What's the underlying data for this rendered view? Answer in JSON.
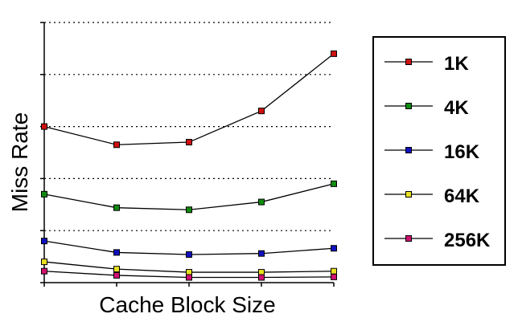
{
  "chart_data": {
    "type": "line",
    "title": "",
    "xlabel": "Cache Block Size",
    "ylabel": "Miss Rate",
    "categories": [
      "",
      "",
      "",
      "",
      ""
    ],
    "ylim": [
      0,
      5
    ],
    "grid": "horizontal dotted",
    "legend_position": "right",
    "series": [
      {
        "name": "1K",
        "color": "#d01010",
        "values": [
          3.0,
          2.65,
          2.7,
          3.3,
          4.4
        ]
      },
      {
        "name": "4K",
        "color": "#108a10",
        "values": [
          1.7,
          1.44,
          1.4,
          1.55,
          1.9
        ]
      },
      {
        "name": "16K",
        "color": "#1010c0",
        "values": [
          0.8,
          0.58,
          0.54,
          0.56,
          0.66
        ]
      },
      {
        "name": "64K",
        "color": "#e8e020",
        "values": [
          0.4,
          0.26,
          0.2,
          0.2,
          0.22
        ]
      },
      {
        "name": "256K",
        "color": "#d01070",
        "values": [
          0.22,
          0.14,
          0.1,
          0.1,
          0.11
        ]
      }
    ]
  }
}
